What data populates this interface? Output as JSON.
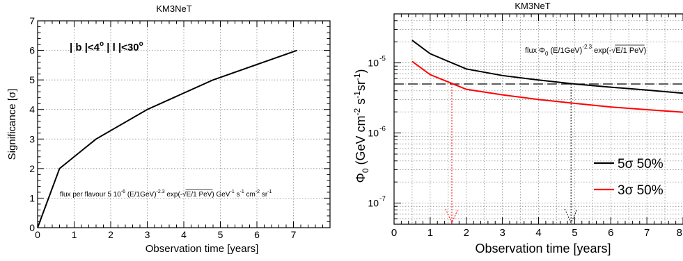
{
  "chart_data": [
    {
      "type": "line",
      "title": "KM3NeT",
      "xlabel": "Observation time [years]",
      "ylabel": "Significance [σ]",
      "xlim": [
        0,
        8
      ],
      "ylim": [
        0,
        7
      ],
      "xticks": [
        "0",
        "1",
        "2",
        "3",
        "4",
        "5",
        "6",
        "7"
      ],
      "yticks": [
        "0",
        "1",
        "2",
        "3",
        "4",
        "5",
        "6",
        "7"
      ],
      "grid": true,
      "annotations": {
        "cut_b": "| b |<4",
        "deg1": "o",
        "cut_l": " | l |<30",
        "deg2": "o",
        "flux_a": "flux per flavour 5 10",
        "flux_a_sup": "-6",
        "flux_b": " (E/1GeV)",
        "flux_b_sup": "-2.3",
        "flux_c": " exp(-",
        "flux_sqrt": "E/1 PeV",
        "flux_d": ") GeV",
        "flux_d_sup": "-1",
        "flux_e": " s",
        "flux_e_sup": "-1",
        "flux_f": " cm",
        "flux_f_sup": "-2",
        "flux_g": " sr",
        "flux_g_sup": "-1"
      },
      "series": [
        {
          "color": "#000000",
          "x": [
            0,
            0.6,
            1.6,
            3,
            4.8,
            7.1
          ],
          "y": [
            0,
            2.0,
            3.0,
            4.0,
            5.0,
            6.0
          ]
        }
      ]
    },
    {
      "type": "line",
      "title": "KM3NeT",
      "xlabel": "Observation time [years]",
      "ylabel": "Φ",
      "ylabel_sub": "0",
      "ylabel_rest": " (GeV cm",
      "ylabel_sup1": "-2",
      "ylabel_rest2": " s",
      "ylabel_sup2": "-1",
      "ylabel_rest3": "sr",
      "ylabel_sup3": "-1",
      "ylabel_end": ")",
      "yscale": "log",
      "xlim": [
        0,
        8
      ],
      "ylim": [
        5e-08,
        5e-05
      ],
      "xticks": [
        "0",
        "1",
        "2",
        "3",
        "4",
        "5",
        "6",
        "7",
        "8"
      ],
      "yticks": [
        {
          "base": "10",
          "exp": "-7",
          "value": 1e-07
        },
        {
          "base": "10",
          "exp": "-6",
          "value": 1e-06
        },
        {
          "base": "10",
          "exp": "-5",
          "value": 1e-05
        }
      ],
      "grid": true,
      "annotations": {
        "flux_a": "flux  Φ",
        "flux_a_sub": "0",
        "flux_b": " (E/1GeV)",
        "flux_b_sup": "-2.3",
        "flux_c": " exp(-",
        "flux_sqrt": "E/1 PeV",
        "flux_d": ")"
      },
      "reference_level": 5e-06,
      "crossings": [
        {
          "x": 1.6,
          "color": "#ff0000"
        },
        {
          "x": 4.9,
          "color": "#000000"
        }
      ],
      "legend_position": "bottom-right",
      "series": [
        {
          "name": "5σ 50%",
          "color": "#000000",
          "x": [
            0.5,
            1,
            2,
            3,
            4,
            5,
            6,
            7,
            8
          ],
          "y": [
            2.1e-05,
            1.35e-05,
            8.2e-06,
            6.6e-06,
            5.7e-06,
            5e-06,
            4.5e-06,
            4.1e-06,
            3.7e-06
          ]
        },
        {
          "name": "3σ 50%",
          "color": "#ff0000",
          "x": [
            0.5,
            1,
            2,
            3,
            4,
            5,
            6,
            7,
            8
          ],
          "y": [
            1.05e-05,
            6.8e-06,
            4.2e-06,
            3.5e-06,
            3e-06,
            2.65e-06,
            2.35e-06,
            2.15e-06,
            1.98e-06
          ]
        }
      ]
    }
  ]
}
